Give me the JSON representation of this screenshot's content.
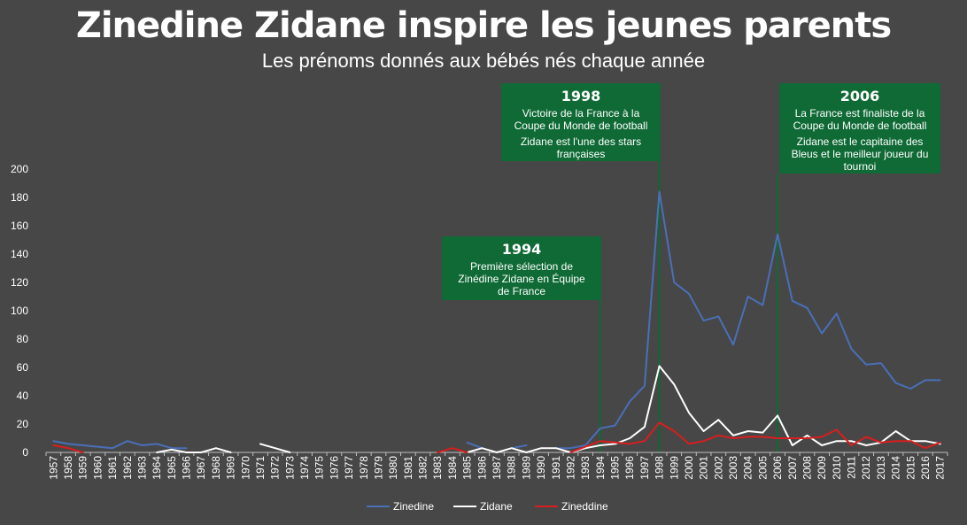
{
  "header": {
    "title": "Zinedine Zidane inspire les jeunes parents",
    "subtitle": "Les prénoms donnés aux bébés nés chaque année"
  },
  "colors": {
    "background": "#474747",
    "zinedine": "#4a6fb8",
    "zidane": "#ffffff",
    "zineddine": "#d81e1e",
    "annotation": "#0f6a35"
  },
  "chart_data": {
    "type": "line",
    "title": "Zinedine Zidane inspire les jeunes parents",
    "subtitle": "Les prénoms donnés aux bébés nés chaque année",
    "ylim": [
      0,
      200
    ],
    "yticks": [
      0,
      20,
      40,
      60,
      80,
      100,
      120,
      140,
      160,
      180,
      200
    ],
    "grid": false,
    "legend": "bottom",
    "x": [
      1957,
      1958,
      1959,
      1960,
      1961,
      1962,
      1963,
      1964,
      1965,
      1966,
      1967,
      1968,
      1969,
      1970,
      1971,
      1972,
      1973,
      1974,
      1975,
      1976,
      1977,
      1978,
      1979,
      1980,
      1981,
      1982,
      1983,
      1984,
      1985,
      1986,
      1987,
      1988,
      1989,
      1990,
      1991,
      1992,
      1993,
      1994,
      1995,
      1996,
      1997,
      1998,
      1999,
      2000,
      2001,
      2002,
      2003,
      2004,
      2005,
      2006,
      2007,
      2008,
      2009,
      2010,
      2011,
      2012,
      2013,
      2014,
      2015,
      2016,
      2017
    ],
    "series": [
      {
        "name": "Zinedine",
        "color": "#4a6fb8",
        "values": [
          8,
          6,
          5,
          4,
          3,
          8,
          5,
          6,
          3,
          3,
          null,
          null,
          null,
          5,
          null,
          null,
          null,
          3,
          null,
          null,
          3,
          null,
          3,
          null,
          null,
          null,
          5,
          null,
          7,
          3,
          null,
          3,
          5,
          null,
          3,
          3,
          5,
          17,
          19,
          36,
          47,
          184,
          120,
          112,
          93,
          96,
          76,
          110,
          104,
          154,
          107,
          102,
          84,
          98,
          73,
          62,
          63,
          49,
          45,
          51,
          51
        ]
      },
      {
        "name": "Zidane",
        "color": "#ffffff",
        "values": [
          null,
          null,
          null,
          null,
          null,
          null,
          null,
          0,
          2,
          0,
          0,
          3,
          0,
          null,
          6,
          3,
          0,
          null,
          null,
          null,
          null,
          null,
          null,
          null,
          null,
          null,
          null,
          null,
          0,
          3,
          0,
          3,
          0,
          3,
          3,
          0,
          3,
          5,
          6,
          10,
          18,
          61,
          48,
          28,
          15,
          23,
          12,
          15,
          14,
          26,
          5,
          12,
          5,
          8,
          8,
          5,
          7,
          15,
          8,
          8,
          6
        ]
      },
      {
        "name": "Zineddine",
        "color": "#d81e1e",
        "values": [
          5,
          3,
          0,
          null,
          null,
          null,
          null,
          null,
          null,
          null,
          null,
          null,
          null,
          null,
          null,
          null,
          null,
          null,
          null,
          null,
          null,
          null,
          null,
          null,
          null,
          null,
          0,
          3,
          0,
          null,
          null,
          null,
          null,
          null,
          null,
          0,
          4,
          8,
          7,
          6,
          8,
          21,
          15,
          6,
          8,
          12,
          10,
          11,
          11,
          10,
          10,
          10,
          11,
          16,
          5,
          11,
          7,
          8,
          8,
          3,
          7
        ]
      }
    ],
    "annotations": [
      {
        "x": 1994,
        "year": "1994",
        "lines": [
          "Première sélection de",
          "Zinédine Zidane en Équipe",
          "de France"
        ]
      },
      {
        "x": 1998,
        "year": "1998",
        "lines": [
          "Victoire de la France à la",
          "Coupe du Monde de football",
          "Zidane est l'une des stars",
          "françaises"
        ]
      },
      {
        "x": 2006,
        "year": "2006",
        "lines": [
          "La France est finaliste de la",
          "Coupe du Monde de football",
          "Zidane est le capitaine des",
          "Bleus et le meilleur joueur du",
          "tournoi"
        ]
      }
    ]
  }
}
